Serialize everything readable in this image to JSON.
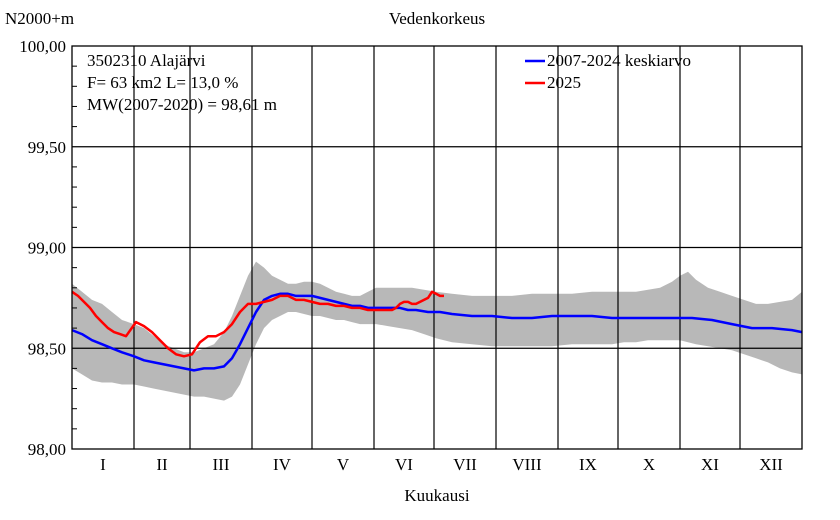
{
  "chart_data": {
    "type": "line",
    "title": "Vedenkorkeus",
    "ylabel": "N2000+m",
    "xlabel": "Kuukausi",
    "ylim": [
      98.0,
      100.0
    ],
    "yticks": [
      "98,00",
      "98,50",
      "99,00",
      "99,50",
      "100,00"
    ],
    "ytick_values": [
      98.0,
      98.5,
      99.0,
      99.5,
      100.0
    ],
    "xlim_days": [
      0,
      365
    ],
    "months": [
      "I",
      "II",
      "III",
      "IV",
      "V",
      "VI",
      "VII",
      "VIII",
      "IX",
      "X",
      "XI",
      "XII"
    ],
    "month_starts": [
      0,
      31,
      59,
      90,
      120,
      151,
      181,
      212,
      243,
      273,
      304,
      334,
      365
    ],
    "grid": true,
    "legend_position": "top-right",
    "info": {
      "line1": "3502310 Alajärvi",
      "line2": "F=     63 km2 L=  13,0 %",
      "line3": "MW(2007-2020) = 98,61 m"
    },
    "band": {
      "x": [
        0,
        5,
        10,
        15,
        20,
        25,
        31,
        36,
        41,
        46,
        51,
        56,
        61,
        66,
        71,
        76,
        80,
        84,
        88,
        92,
        96,
        100,
        104,
        108,
        112,
        116,
        120,
        124,
        128,
        132,
        136,
        140,
        144,
        148,
        152,
        158,
        164,
        170,
        176,
        182,
        190,
        200,
        210,
        220,
        230,
        240,
        250,
        260,
        270,
        276,
        282,
        288,
        294,
        300,
        304,
        308,
        312,
        318,
        324,
        330,
        336,
        342,
        348,
        354,
        360,
        365
      ],
      "upper": [
        98.82,
        98.78,
        98.74,
        98.72,
        98.68,
        98.64,
        98.62,
        98.6,
        98.56,
        98.52,
        98.5,
        98.48,
        98.48,
        98.5,
        98.52,
        98.58,
        98.66,
        98.76,
        98.86,
        98.93,
        98.9,
        98.86,
        98.84,
        98.82,
        98.82,
        98.83,
        98.83,
        98.82,
        98.8,
        98.78,
        98.77,
        98.76,
        98.76,
        98.78,
        98.8,
        98.8,
        98.8,
        98.8,
        98.79,
        98.78,
        98.77,
        98.76,
        98.76,
        98.76,
        98.77,
        98.77,
        98.77,
        98.78,
        98.78,
        98.78,
        98.78,
        98.79,
        98.8,
        98.83,
        98.86,
        98.88,
        98.84,
        98.8,
        98.78,
        98.76,
        98.74,
        98.72,
        98.72,
        98.73,
        98.74,
        98.78
      ],
      "lower": [
        98.4,
        98.37,
        98.34,
        98.33,
        98.33,
        98.32,
        98.32,
        98.31,
        98.3,
        98.29,
        98.28,
        98.27,
        98.26,
        98.26,
        98.25,
        98.24,
        98.26,
        98.32,
        98.42,
        98.52,
        98.6,
        98.64,
        98.66,
        98.68,
        98.68,
        98.67,
        98.66,
        98.66,
        98.65,
        98.64,
        98.64,
        98.63,
        98.62,
        98.62,
        98.62,
        98.61,
        98.6,
        98.59,
        98.57,
        98.55,
        98.53,
        98.52,
        98.51,
        98.51,
        98.51,
        98.51,
        98.52,
        98.52,
        98.52,
        98.53,
        98.53,
        98.54,
        98.54,
        98.54,
        98.54,
        98.53,
        98.52,
        98.51,
        98.5,
        98.49,
        98.47,
        98.45,
        98.43,
        98.4,
        98.38,
        98.37
      ]
    },
    "series": [
      {
        "name": "2007-2024 keskiarvo",
        "color": "#0000ff",
        "x": [
          0,
          5,
          10,
          15,
          20,
          25,
          31,
          36,
          41,
          46,
          51,
          56,
          61,
          66,
          71,
          76,
          80,
          84,
          88,
          92,
          96,
          100,
          104,
          108,
          112,
          116,
          120,
          124,
          128,
          132,
          136,
          140,
          144,
          148,
          152,
          156,
          160,
          164,
          168,
          172,
          178,
          184,
          190,
          200,
          210,
          220,
          230,
          240,
          250,
          260,
          270,
          280,
          290,
          300,
          305,
          310,
          320,
          330,
          340,
          350,
          360,
          365
        ],
        "values": [
          98.59,
          98.57,
          98.54,
          98.52,
          98.5,
          98.48,
          98.46,
          98.44,
          98.43,
          98.42,
          98.41,
          98.4,
          98.39,
          98.4,
          98.4,
          98.41,
          98.45,
          98.52,
          98.6,
          98.68,
          98.74,
          98.76,
          98.77,
          98.77,
          98.76,
          98.76,
          98.76,
          98.75,
          98.74,
          98.73,
          98.72,
          98.71,
          98.71,
          98.7,
          98.7,
          98.7,
          98.7,
          98.7,
          98.69,
          98.69,
          98.68,
          98.68,
          98.67,
          98.66,
          98.66,
          98.65,
          98.65,
          98.66,
          98.66,
          98.66,
          98.65,
          98.65,
          98.65,
          98.65,
          98.65,
          98.65,
          98.64,
          98.62,
          98.6,
          98.6,
          98.59,
          98.58
        ]
      },
      {
        "name": "2025",
        "color": "#ff0000",
        "x": [
          0,
          3,
          6,
          9,
          12,
          15,
          18,
          21,
          24,
          27,
          32,
          36,
          40,
          44,
          48,
          52,
          56,
          60,
          64,
          68,
          72,
          76,
          80,
          84,
          88,
          92,
          96,
          100,
          104,
          108,
          112,
          116,
          120,
          124,
          128,
          132,
          136,
          140,
          144,
          148,
          152,
          156,
          160,
          162,
          164,
          166,
          168,
          170,
          172,
          174,
          176,
          178,
          180,
          182,
          184,
          186
        ],
        "values": [
          98.78,
          98.76,
          98.73,
          98.7,
          98.66,
          98.63,
          98.6,
          98.58,
          98.57,
          98.56,
          98.63,
          98.61,
          98.58,
          98.54,
          98.5,
          98.47,
          98.46,
          98.47,
          98.53,
          98.56,
          98.56,
          98.58,
          98.62,
          98.68,
          98.72,
          98.72,
          98.73,
          98.74,
          98.76,
          98.76,
          98.74,
          98.74,
          98.73,
          98.72,
          98.72,
          98.71,
          98.71,
          98.7,
          98.7,
          98.69,
          98.69,
          98.69,
          98.69,
          98.7,
          98.72,
          98.73,
          98.73,
          98.72,
          98.72,
          98.73,
          98.74,
          98.75,
          98.78,
          98.77,
          98.76,
          98.76
        ]
      }
    ]
  }
}
